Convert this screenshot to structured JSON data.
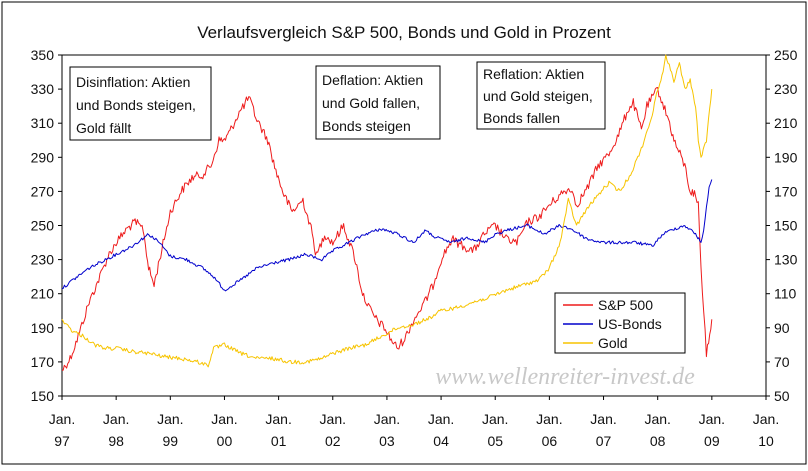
{
  "chart_data": {
    "type": "line",
    "title": "Verlaufsvergleich S&P 500, Bonds und Gold in Prozent",
    "y_left": {
      "min": 150,
      "max": 350,
      "ticks": [
        150,
        170,
        190,
        210,
        230,
        250,
        270,
        290,
        310,
        330,
        350
      ]
    },
    "y_right": {
      "min": 50,
      "max": 250,
      "ticks": [
        50,
        70,
        90,
        110,
        130,
        150,
        170,
        190,
        210,
        230,
        250
      ]
    },
    "x_axis": {
      "min": 1997.0,
      "max": 2010.0,
      "ticks": [
        {
          "x": 1997,
          "line1": "Jan.",
          "line2": "97"
        },
        {
          "x": 1998,
          "line1": "Jan.",
          "line2": "98"
        },
        {
          "x": 1999,
          "line1": "Jan.",
          "line2": "99"
        },
        {
          "x": 2000,
          "line1": "Jan.",
          "line2": "00"
        },
        {
          "x": 2001,
          "line1": "Jan.",
          "line2": "01"
        },
        {
          "x": 2002,
          "line1": "Jan.",
          "line2": "02"
        },
        {
          "x": 2003,
          "line1": "Jan.",
          "line2": "03"
        },
        {
          "x": 2004,
          "line1": "Jan.",
          "line2": "04"
        },
        {
          "x": 2005,
          "line1": "Jan.",
          "line2": "05"
        },
        {
          "x": 2006,
          "line1": "Jan.",
          "line2": "06"
        },
        {
          "x": 2007,
          "line1": "Jan.",
          "line2": "07"
        },
        {
          "x": 2008,
          "line1": "Jan.",
          "line2": "08"
        },
        {
          "x": 2009,
          "line1": "Jan.",
          "line2": "09"
        },
        {
          "x": 2010,
          "line1": "Jan.",
          "line2": "10"
        }
      ]
    },
    "series": [
      {
        "name": "S&P 500",
        "color": "#ee1c1c",
        "axis": "left",
        "x": [
          1997.0,
          1997.15,
          1997.3,
          1997.5,
          1997.7,
          1997.85,
          1998.0,
          1998.2,
          1998.35,
          1998.5,
          1998.6,
          1998.7,
          1998.8,
          1999.0,
          1999.2,
          1999.4,
          1999.6,
          1999.75,
          1999.9,
          2000.0,
          2000.1,
          2000.25,
          2000.45,
          2000.6,
          2000.8,
          2000.95,
          2001.1,
          2001.25,
          2001.45,
          2001.6,
          2001.7,
          2001.85,
          2002.0,
          2002.2,
          2002.4,
          2002.55,
          2002.7,
          2002.8,
          2002.95,
          2003.1,
          2003.2,
          2003.35,
          2003.5,
          2003.7,
          2003.85,
          2004.0,
          2004.2,
          2004.4,
          2004.6,
          2004.8,
          2005.0,
          2005.2,
          2005.4,
          2005.6,
          2005.8,
          2006.0,
          2006.2,
          2006.4,
          2006.5,
          2006.7,
          2006.9,
          2007.1,
          2007.3,
          2007.45,
          2007.55,
          2007.7,
          2007.8,
          2008.0,
          2008.2,
          2008.3,
          2008.5,
          2008.6,
          2008.7,
          2008.75,
          2008.8,
          2008.85,
          2008.9,
          2009.0
        ],
        "y": [
          165,
          172,
          185,
          205,
          220,
          232,
          240,
          248,
          252,
          248,
          225,
          215,
          230,
          258,
          270,
          278,
          280,
          285,
          300,
          300,
          305,
          315,
          325,
          312,
          300,
          282,
          268,
          258,
          265,
          248,
          232,
          245,
          240,
          250,
          232,
          210,
          200,
          195,
          190,
          182,
          178,
          185,
          195,
          205,
          215,
          230,
          242,
          238,
          235,
          245,
          250,
          242,
          240,
          252,
          255,
          262,
          268,
          272,
          262,
          272,
          285,
          292,
          305,
          318,
          322,
          306,
          320,
          330,
          312,
          300,
          285,
          270,
          268,
          262,
          225,
          200,
          175,
          195
        ]
      },
      {
        "name": "US-Bonds",
        "color": "#0000cc",
        "axis": "right",
        "x": [
          1997.0,
          1997.2,
          1997.5,
          1997.8,
          1998.0,
          1998.3,
          1998.6,
          1998.8,
          1999.0,
          1999.3,
          1999.6,
          1999.8,
          2000.0,
          2000.3,
          2000.6,
          2000.9,
          2001.2,
          2001.5,
          2001.8,
          2002.0,
          2002.3,
          2002.6,
          2002.9,
          2003.2,
          2003.5,
          2003.7,
          2003.9,
          2004.2,
          2004.5,
          2004.8,
          2005.0,
          2005.3,
          2005.6,
          2005.9,
          2006.2,
          2006.4,
          2006.7,
          2007.0,
          2007.3,
          2007.6,
          2007.9,
          2008.1,
          2008.3,
          2008.5,
          2008.7,
          2008.8,
          2008.85,
          2008.9,
          2008.95,
          2009.0
        ],
        "y": [
          113,
          118,
          125,
          130,
          133,
          138,
          145,
          140,
          132,
          130,
          125,
          120,
          112,
          118,
          125,
          128,
          130,
          133,
          130,
          135,
          140,
          145,
          148,
          145,
          140,
          147,
          143,
          140,
          143,
          140,
          145,
          148,
          150,
          145,
          150,
          148,
          142,
          140,
          140,
          140,
          138,
          145,
          148,
          150,
          145,
          140,
          148,
          160,
          172,
          177
        ]
      },
      {
        "name": "Gold",
        "color": "#f7c400",
        "axis": "right",
        "x": [
          1997.0,
          1997.2,
          1997.4,
          1997.6,
          1997.8,
          1998.0,
          1998.3,
          1998.6,
          1998.9,
          1999.2,
          1999.5,
          1999.7,
          1999.8,
          2000.0,
          2000.3,
          2000.6,
          2000.9,
          2001.2,
          2001.5,
          2001.8,
          2002.0,
          2002.3,
          2002.6,
          2002.9,
          2003.2,
          2003.5,
          2003.8,
          2004.0,
          2004.3,
          2004.6,
          2004.9,
          2005.2,
          2005.5,
          2005.8,
          2006.0,
          2006.2,
          2006.35,
          2006.5,
          2006.7,
          2006.9,
          2007.1,
          2007.3,
          2007.5,
          2007.7,
          2007.9,
          2008.0,
          2008.1,
          2008.15,
          2008.3,
          2008.4,
          2008.5,
          2008.6,
          2008.7,
          2008.75,
          2008.8,
          2008.9,
          2009.0
        ],
        "y": [
          95,
          88,
          85,
          80,
          78,
          78,
          76,
          75,
          73,
          72,
          70,
          68,
          78,
          80,
          75,
          72,
          72,
          70,
          70,
          72,
          75,
          78,
          80,
          85,
          90,
          92,
          96,
          100,
          102,
          105,
          108,
          112,
          115,
          118,
          125,
          140,
          165,
          150,
          160,
          168,
          175,
          170,
          180,
          195,
          215,
          230,
          240,
          250,
          235,
          245,
          230,
          235,
          220,
          200,
          190,
          200,
          230
        ]
      }
    ],
    "legend": {
      "position": "bottom-right",
      "items": [
        "S&P 500",
        "US-Bonds",
        "Gold"
      ]
    },
    "annotations": [
      {
        "id": "disinflation",
        "lines": [
          "Disinflation: Aktien",
          "und Bonds steigen,",
          "Gold fällt"
        ]
      },
      {
        "id": "deflation",
        "lines": [
          "Deflation: Aktien",
          "und Gold fallen,",
          "Bonds steigen"
        ]
      },
      {
        "id": "reflation",
        "lines": [
          "Reflation: Aktien",
          "und Gold steigen,",
          "Bonds fallen"
        ]
      }
    ],
    "watermark": "www.wellenreiter-invest.de"
  }
}
